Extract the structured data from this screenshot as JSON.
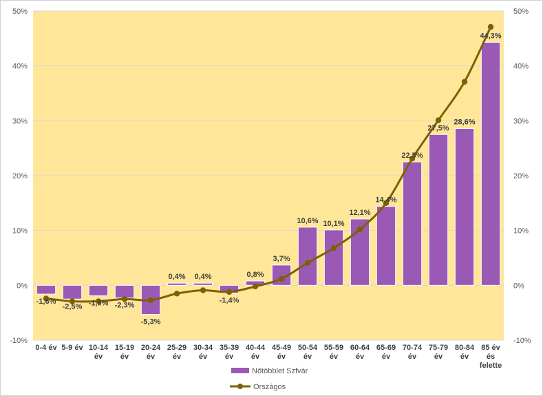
{
  "chart_data": {
    "type": "bar+line",
    "categories": [
      [
        "0-4 év"
      ],
      [
        "5-9 év"
      ],
      [
        "10-14",
        "év"
      ],
      [
        "15-19",
        "év"
      ],
      [
        "20-24",
        "év"
      ],
      [
        "25-29",
        "év"
      ],
      [
        "30-34",
        "év"
      ],
      [
        "35-39",
        "év"
      ],
      [
        "40-44",
        "év"
      ],
      [
        "45-49",
        "év"
      ],
      [
        "50-54",
        "év"
      ],
      [
        "55-59",
        "év"
      ],
      [
        "60-64",
        "év"
      ],
      [
        "65-69",
        "év"
      ],
      [
        "70-74",
        "év"
      ],
      [
        "75-79",
        "év"
      ],
      [
        "80-84",
        "év"
      ],
      [
        "85 év",
        "és",
        "felette"
      ]
    ],
    "series": [
      {
        "name": "Nőtöbblet Szfvár",
        "type": "bar",
        "color": "#9B59B6",
        "values": [
          -1.6,
          -2.5,
          -1.9,
          -2.3,
          -5.3,
          0.4,
          0.4,
          -1.4,
          0.8,
          3.7,
          10.6,
          10.1,
          12.1,
          14.4,
          22.5,
          27.5,
          28.6,
          44.3
        ],
        "labels": [
          "-1,6%",
          "-2,5%",
          "-1,9%",
          "-2,3%",
          "-5,3%",
          "0,4%",
          "0,4%",
          "-1,4%",
          "0,8%",
          "3,7%",
          "10,6%",
          "10,1%",
          "12,1%",
          "14,4%",
          "22,5%",
          "27,5%",
          "28,6%",
          "44,3%"
        ]
      },
      {
        "name": "Országos",
        "type": "line",
        "color": "#7F6000",
        "values": [
          -2.4,
          -2.9,
          -2.9,
          -2.5,
          -2.7,
          -1.5,
          -0.9,
          -1.2,
          -0.2,
          1.2,
          4.1,
          6.8,
          10.2,
          15.0,
          23.1,
          30.1,
          37.1,
          47.1
        ]
      }
    ],
    "ylim": [
      -10,
      50
    ],
    "yticks": [
      "-10%",
      "0%",
      "10%",
      "20%",
      "30%",
      "40%",
      "50%"
    ],
    "secondary_yticks": [
      "-10%",
      "0%",
      "10%",
      "20%",
      "30%",
      "40%",
      "50%"
    ],
    "plot_background": "#FFE699",
    "grid": true,
    "legend": "bottom"
  }
}
